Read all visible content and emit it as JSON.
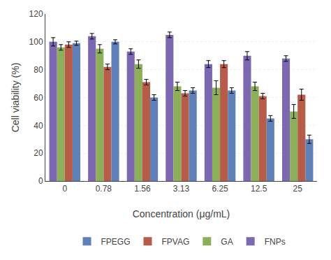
{
  "chart_data": {
    "type": "bar",
    "categories": [
      "0",
      "0.78",
      "1.56",
      "3.13",
      "6.25",
      "12.5",
      "25"
    ],
    "series": [
      {
        "name": "FNPs",
        "color": "#7B68B0",
        "values": [
          100,
          104,
          93,
          105,
          84,
          90,
          88
        ],
        "errors": [
          3,
          2,
          2,
          2,
          2.5,
          3,
          2
        ]
      },
      {
        "name": "GA",
        "color": "#8DAF5A",
        "values": [
          96,
          95,
          84,
          68,
          67,
          68,
          50
        ],
        "errors": [
          2,
          3,
          3,
          3,
          5,
          3,
          5
        ]
      },
      {
        "name": "FPVAG",
        "color": "#B85C4A",
        "values": [
          98,
          82,
          71,
          63,
          84,
          61,
          62
        ],
        "errors": [
          2,
          2,
          2,
          2,
          2.5,
          2,
          4
        ]
      },
      {
        "name": "FPEGG",
        "color": "#6080B8",
        "values": [
          99,
          100,
          60,
          65,
          65,
          45,
          30
        ],
        "errors": [
          1.5,
          1.5,
          2,
          2,
          2,
          2,
          3
        ]
      }
    ],
    "xlabel": "Concentration (μg/mL)",
    "ylabel": "Cell viability (%)",
    "ylim": [
      0,
      120
    ],
    "yticks": [
      0,
      20,
      40,
      60,
      80,
      100,
      120
    ],
    "grid": true,
    "legend": "bottom"
  }
}
